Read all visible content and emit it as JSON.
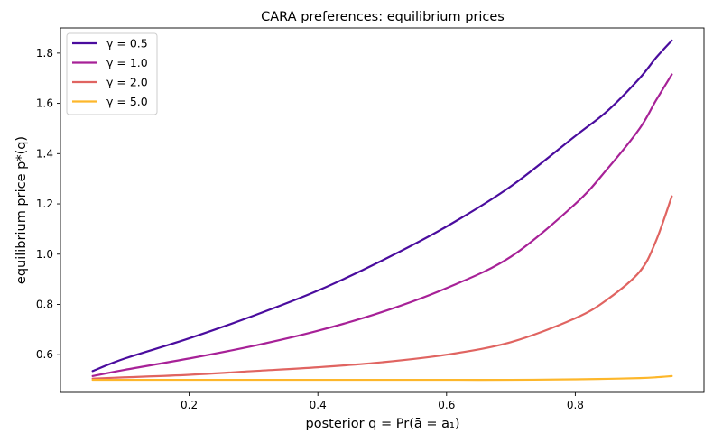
{
  "chart_data": {
    "type": "line",
    "title": "CARA preferences: equilibrium prices",
    "xlabel": "posterior q = Pr(ā = a₁)",
    "ylabel": "equilibrium price p*(q)",
    "xlim": [
      0.0,
      1.0
    ],
    "ylim": [
      0.45,
      1.9
    ],
    "xticks": [
      0.2,
      0.4,
      0.6,
      0.8
    ],
    "yticks": [
      0.6,
      0.8,
      1.0,
      1.2,
      1.4,
      1.6,
      1.8
    ],
    "grid": false,
    "legend_position": "top-left",
    "x": [
      0.05,
      0.1,
      0.2,
      0.3,
      0.4,
      0.5,
      0.6,
      0.7,
      0.8,
      0.85,
      0.9,
      0.925,
      0.95
    ],
    "series": [
      {
        "name": "γ = 0.5",
        "color": "#4a0c9e",
        "values": [
          0.535,
          0.585,
          0.665,
          0.755,
          0.855,
          0.975,
          1.11,
          1.27,
          1.47,
          1.57,
          1.7,
          1.78,
          1.85
        ]
      },
      {
        "name": "γ = 1.0",
        "color": "#a72197",
        "values": [
          0.515,
          0.54,
          0.585,
          0.635,
          0.695,
          0.77,
          0.865,
          0.99,
          1.2,
          1.34,
          1.5,
          1.61,
          1.715
        ]
      },
      {
        "name": "γ = 2.0",
        "color": "#e06461",
        "values": [
          0.505,
          0.51,
          0.52,
          0.535,
          0.55,
          0.57,
          0.6,
          0.65,
          0.745,
          0.82,
          0.93,
          1.05,
          1.23
        ]
      },
      {
        "name": "γ = 5.0",
        "color": "#fdb72b",
        "values": [
          0.5,
          0.5,
          0.5,
          0.5,
          0.5,
          0.5,
          0.5,
          0.5,
          0.502,
          0.504,
          0.507,
          0.51,
          0.515
        ]
      }
    ]
  }
}
